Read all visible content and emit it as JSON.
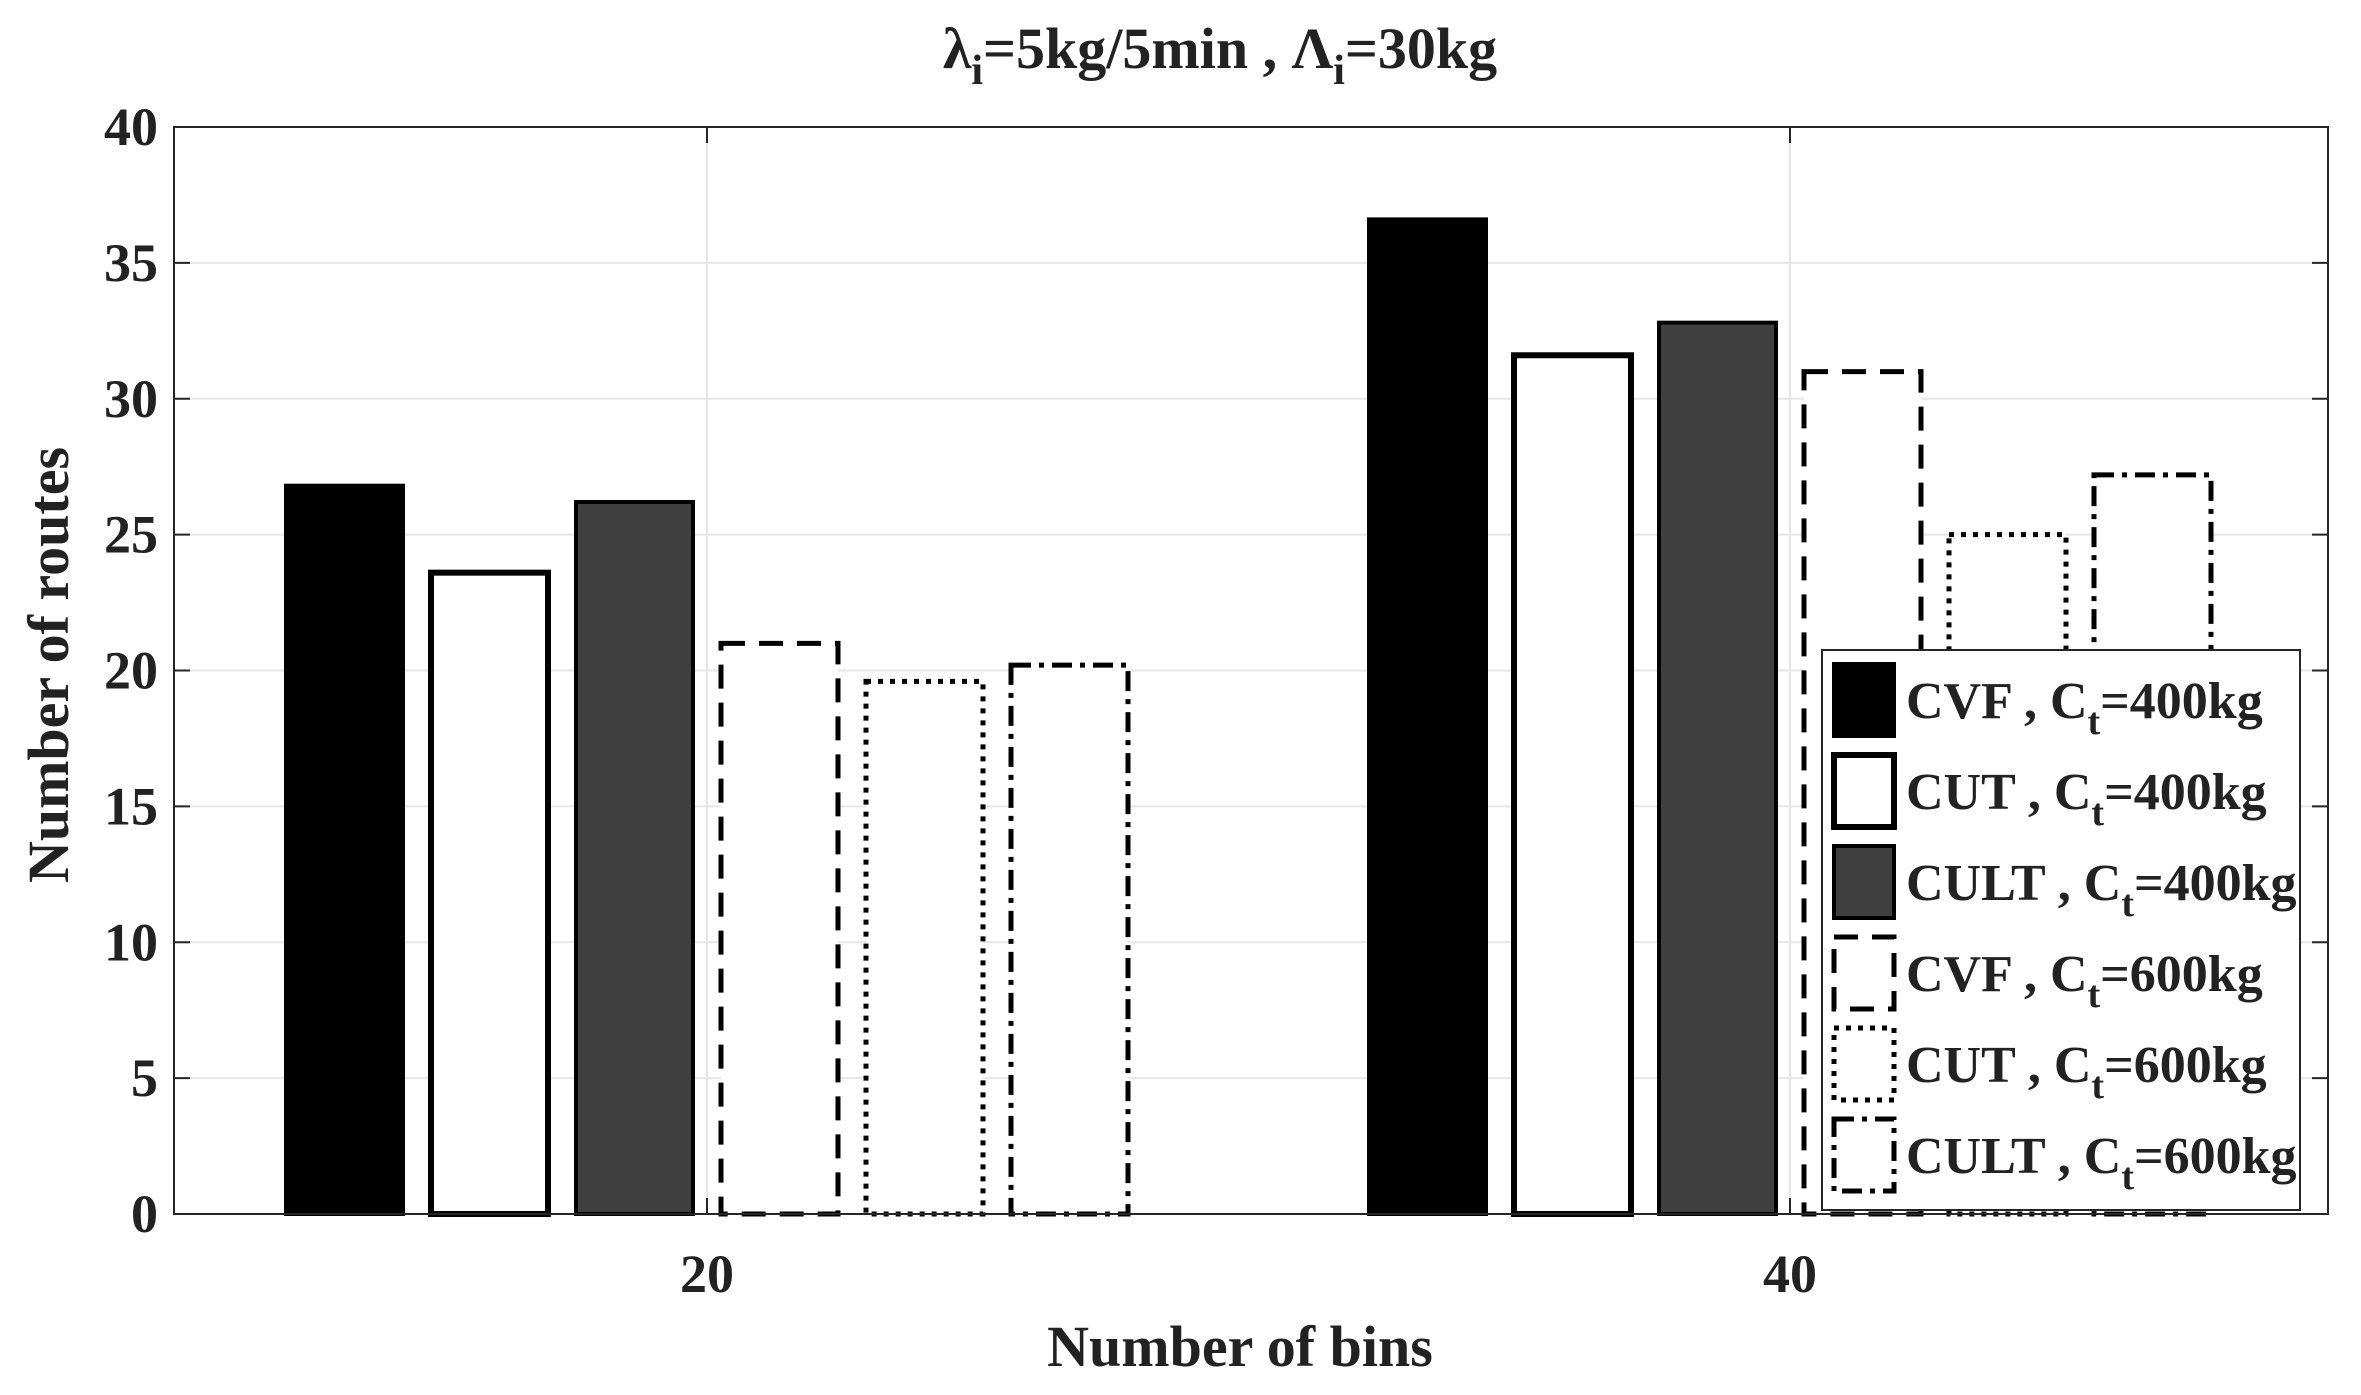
{
  "chart_data": {
    "type": "bar",
    "title": {
      "lambda_symbol": "λ",
      "lambda_sub": "i",
      "lambda_value": "=5kg/5min , ",
      "Lambda_symbol": "Λ",
      "Lambda_sub": "i",
      "Lambda_value": "=30kg"
    },
    "xlabel": "Number of bins",
    "ylabel": "Number of routes",
    "categories": [
      "20",
      "40"
    ],
    "ylim": [
      0,
      40
    ],
    "yticks": [
      "0",
      "5",
      "10",
      "15",
      "20",
      "25",
      "30",
      "35",
      "40"
    ],
    "grid": true,
    "legend_position": "bottom-right",
    "series": [
      {
        "name": "CVF , Ct=400kg",
        "method": "CVF",
        "sub": "t",
        "cap": "=400kg",
        "style": "solid-black",
        "values": [
          26.8,
          36.6
        ]
      },
      {
        "name": "CUT , Ct=400kg",
        "method": "CUT",
        "sub": "t",
        "cap": "=400kg",
        "style": "solid-white",
        "values": [
          23.6,
          31.6
        ]
      },
      {
        "name": "CULT , Ct=400kg",
        "method": "CULT",
        "sub": "t",
        "cap": "=400kg",
        "style": "solid-gray",
        "values": [
          26.2,
          32.8
        ]
      },
      {
        "name": "CVF , Ct=600kg",
        "method": "CVF",
        "sub": "t",
        "cap": "=600kg",
        "style": "dashed",
        "values": [
          21.0,
          31.0
        ]
      },
      {
        "name": "CUT , Ct=600kg",
        "method": "CUT",
        "sub": "t",
        "cap": "=600kg",
        "style": "dotted",
        "values": [
          19.6,
          25.0
        ]
      },
      {
        "name": "CULT , Ct=600kg",
        "method": "CULT",
        "sub": "t",
        "cap": "=600kg",
        "style": "dashdot",
        "values": [
          20.2,
          27.2
        ]
      }
    ],
    "colors": {
      "solid_black": "#000000",
      "solid_gray": "#404040",
      "outline": "#000000",
      "text": "#222222",
      "grid": "#e6e6e6"
    }
  }
}
